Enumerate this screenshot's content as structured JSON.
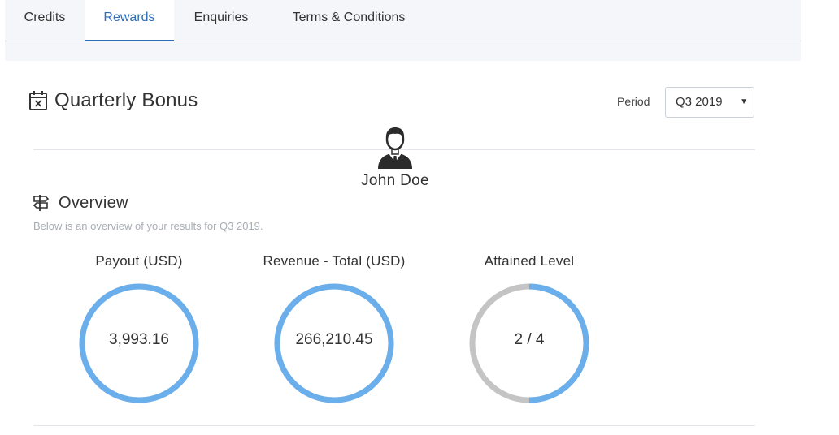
{
  "tabs": [
    {
      "label": "Credits",
      "active": false
    },
    {
      "label": "Rewards",
      "active": true
    },
    {
      "label": "Enquiries",
      "active": false
    },
    {
      "label": "Terms & Conditions",
      "active": false
    }
  ],
  "header": {
    "title": "Quarterly Bonus",
    "title_icon": "calendar-x-icon",
    "period_label": "Period",
    "period_value": "Q3 2019"
  },
  "user": {
    "name": "John Doe",
    "avatar_icon": "businessman-avatar-icon"
  },
  "overview": {
    "title": "Overview",
    "icon": "signpost-icon",
    "subtitle": "Below is an overview of your results for Q3 2019."
  },
  "kpis": [
    {
      "label": "Payout (USD)",
      "value": "3,993.16",
      "fraction": 1.0
    },
    {
      "label": "Revenue - Total (USD)",
      "value": "266,210.45",
      "fraction": 1.0
    },
    {
      "label": "Attained Level",
      "value": "2 / 4",
      "fraction": 0.5
    }
  ],
  "colors": {
    "accent": "#2f6db5",
    "ring_fill": "#6aaeec",
    "ring_track": "#c4c4c4"
  }
}
